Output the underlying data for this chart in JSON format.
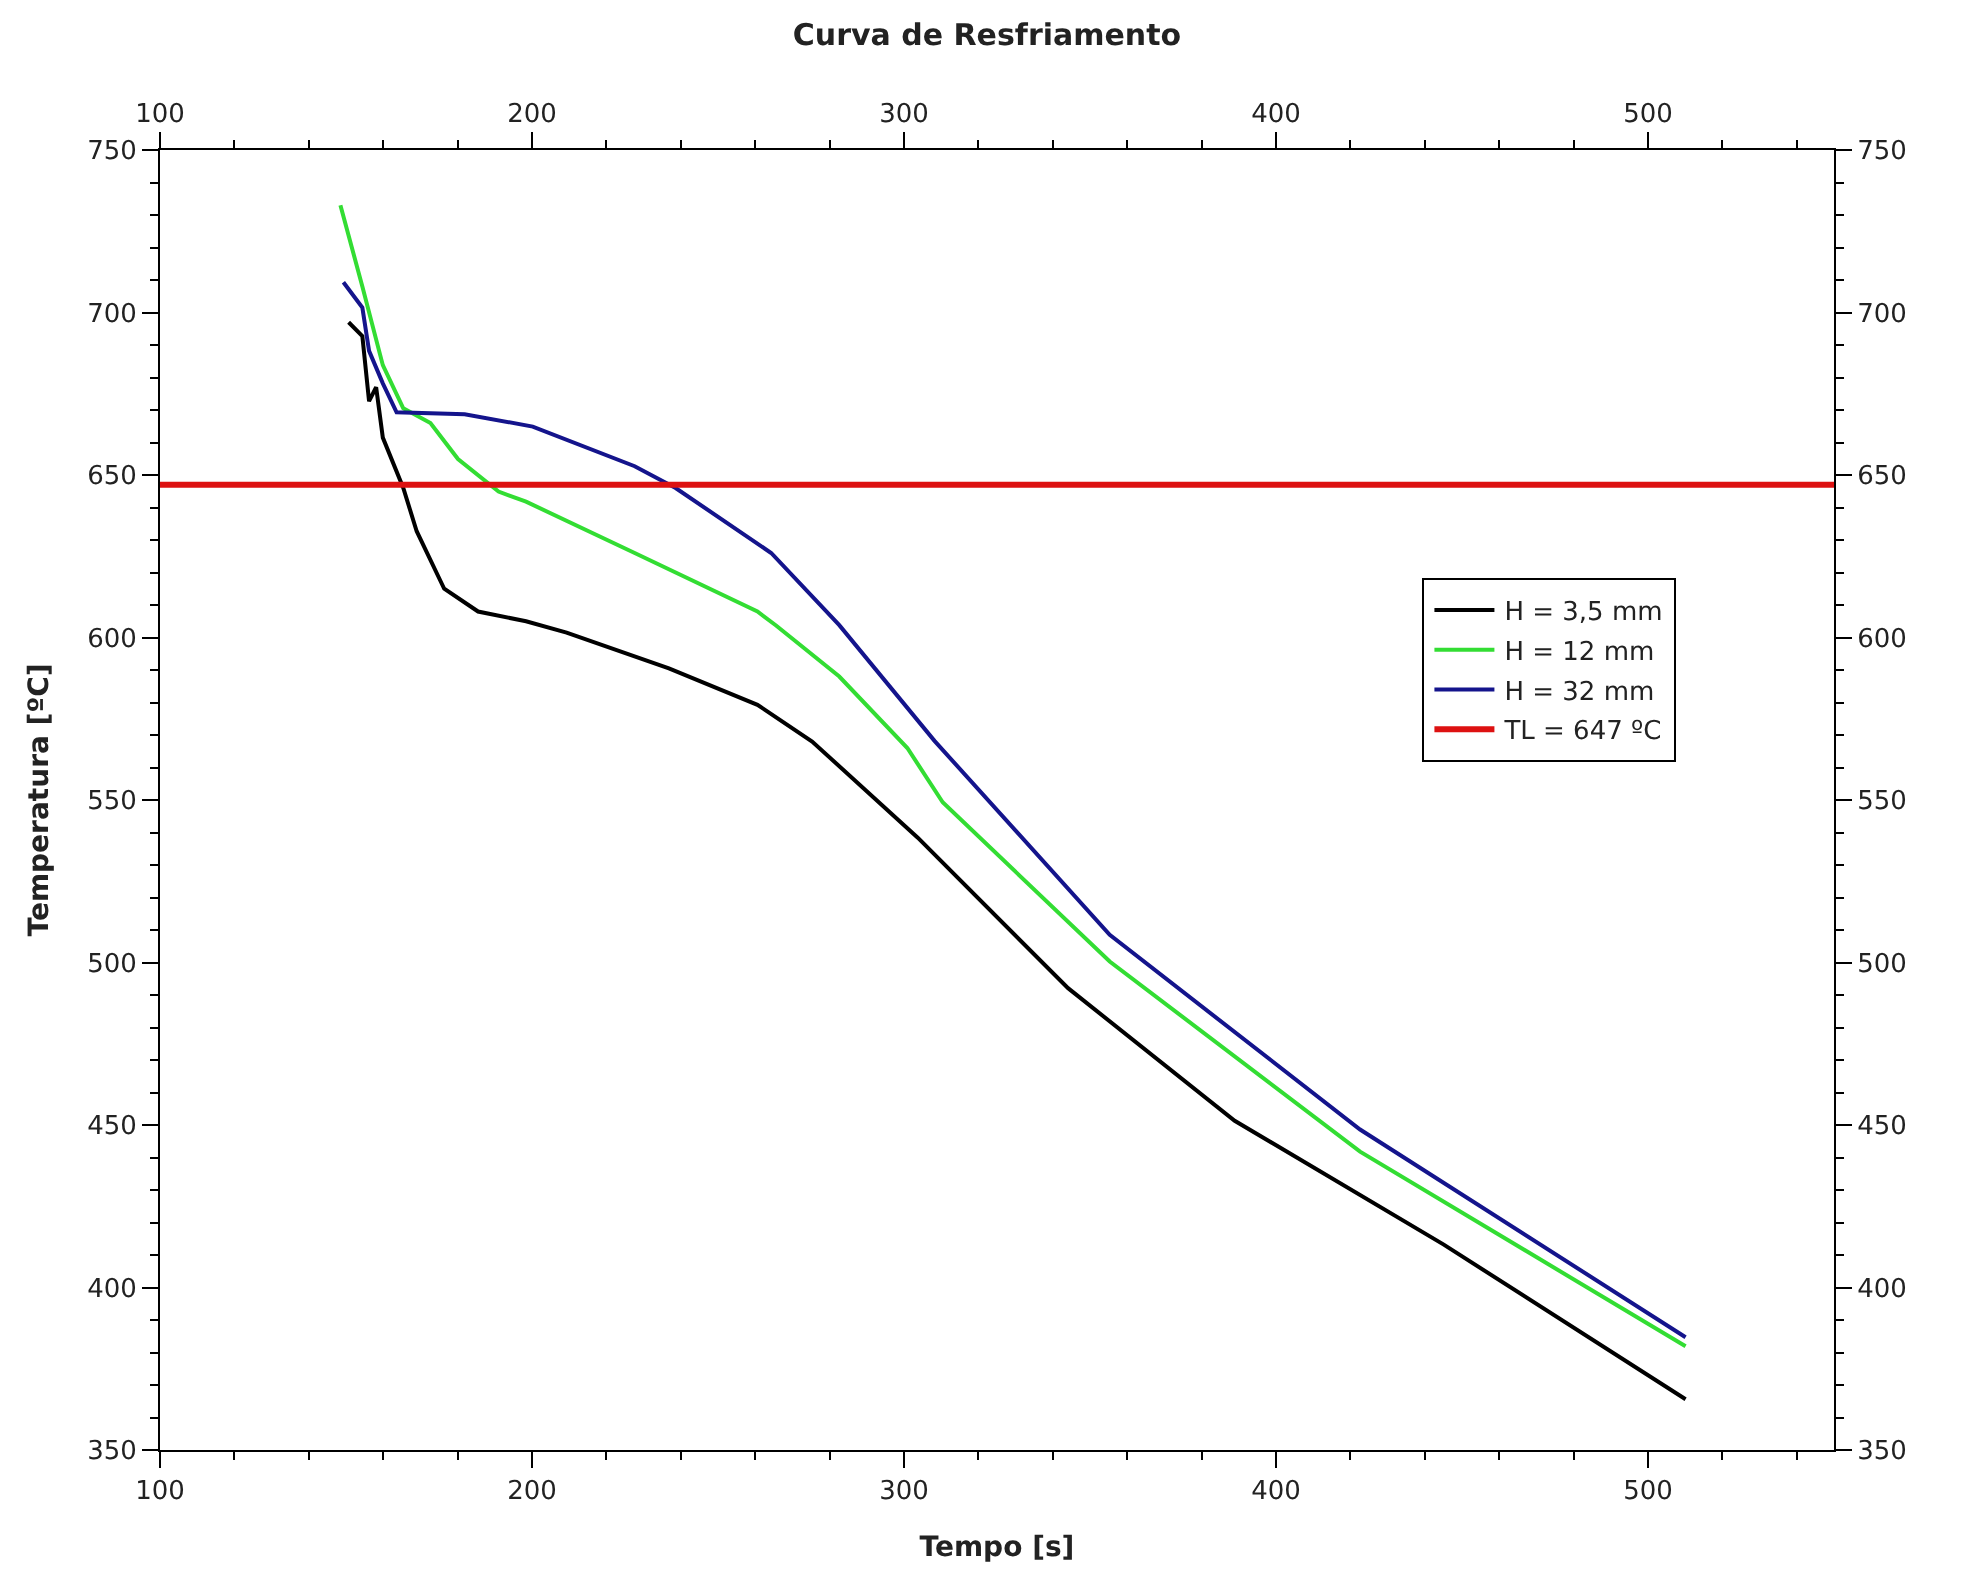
{
  "chart_data": {
    "type": "line",
    "title": "Curva de Resfriamento",
    "xlabel": "Tempo [s]",
    "ylabel": "Temperatura [ºC]",
    "xlim": [
      100,
      550
    ],
    "ylim": [
      350,
      750
    ],
    "x2lim": [
      100,
      550
    ],
    "y2lim": [
      350,
      750
    ],
    "xticks": [
      100,
      {
        "value": 120,
        "label": null
      },
      {
        "value": 140,
        "label": null
      },
      {
        "value": 160,
        "label": null
      },
      {
        "value": 180,
        "label": null
      },
      200,
      {
        "value": 220,
        "label": null
      },
      {
        "value": 240,
        "label": null
      },
      {
        "value": 260,
        "label": null
      },
      {
        "value": 280,
        "label": null
      },
      300,
      {
        "value": 320,
        "label": null
      },
      {
        "value": 340,
        "label": null
      },
      {
        "value": 360,
        "label": null
      },
      {
        "value": 380,
        "label": null
      },
      400,
      {
        "value": 420,
        "label": null
      },
      {
        "value": 440,
        "label": null
      },
      {
        "value": 460,
        "label": null
      },
      {
        "value": 480,
        "label": null
      },
      500,
      {
        "value": 520,
        "label": null
      },
      {
        "value": 540,
        "label": null
      }
    ],
    "x2ticks": [
      100,
      {
        "value": 120,
        "label": null
      },
      {
        "value": 140,
        "label": null
      },
      {
        "value": 160,
        "label": null
      },
      {
        "value": 180,
        "label": null
      },
      200,
      {
        "value": 220,
        "label": null
      },
      {
        "value": 240,
        "label": null
      },
      {
        "value": 260,
        "label": null
      },
      {
        "value": 280,
        "label": null
      },
      300,
      {
        "value": 320,
        "label": null
      },
      {
        "value": 340,
        "label": null
      },
      {
        "value": 360,
        "label": null
      },
      {
        "value": 380,
        "label": null
      },
      400,
      {
        "value": 420,
        "label": null
      },
      {
        "value": 440,
        "label": null
      },
      {
        "value": 460,
        "label": null
      },
      {
        "value": 480,
        "label": null
      },
      500,
      {
        "value": 520,
        "label": null
      },
      {
        "value": 540,
        "label": null
      }
    ],
    "yticks": [
      350,
      {
        "value": 360,
        "label": null
      },
      {
        "value": 370,
        "label": null
      },
      {
        "value": 380,
        "label": null
      },
      {
        "value": 390,
        "label": null
      },
      400,
      {
        "value": 410,
        "label": null
      },
      {
        "value": 420,
        "label": null
      },
      {
        "value": 430,
        "label": null
      },
      {
        "value": 440,
        "label": null
      },
      450,
      {
        "value": 460,
        "label": null
      },
      {
        "value": 470,
        "label": null
      },
      {
        "value": 480,
        "label": null
      },
      {
        "value": 490,
        "label": null
      },
      500,
      {
        "value": 510,
        "label": null
      },
      {
        "value": 520,
        "label": null
      },
      {
        "value": 530,
        "label": null
      },
      {
        "value": 540,
        "label": null
      },
      550,
      {
        "value": 560,
        "label": null
      },
      {
        "value": 570,
        "label": null
      },
      {
        "value": 580,
        "label": null
      },
      {
        "value": 590,
        "label": null
      },
      600,
      {
        "value": 610,
        "label": null
      },
      {
        "value": 620,
        "label": null
      },
      {
        "value": 630,
        "label": null
      },
      {
        "value": 640,
        "label": null
      },
      650,
      {
        "value": 660,
        "label": null
      },
      {
        "value": 670,
        "label": null
      },
      {
        "value": 680,
        "label": null
      },
      {
        "value": 690,
        "label": null
      },
      700,
      {
        "value": 710,
        "label": null
      },
      {
        "value": 720,
        "label": null
      },
      {
        "value": 730,
        "label": null
      },
      {
        "value": 740,
        "label": null
      },
      750
    ],
    "y2ticks": [
      350,
      {
        "value": 360,
        "label": null
      },
      {
        "value": 370,
        "label": null
      },
      {
        "value": 380,
        "label": null
      },
      {
        "value": 390,
        "label": null
      },
      400,
      {
        "value": 410,
        "label": null
      },
      {
        "value": 420,
        "label": null
      },
      {
        "value": 430,
        "label": null
      },
      {
        "value": 440,
        "label": null
      },
      450,
      {
        "value": 460,
        "label": null
      },
      {
        "value": 470,
        "label": null
      },
      {
        "value": 480,
        "label": null
      },
      {
        "value": 490,
        "label": null
      },
      500,
      {
        "value": 510,
        "label": null
      },
      {
        "value": 520,
        "label": null
      },
      {
        "value": 530,
        "label": null
      },
      {
        "value": 540,
        "label": null
      },
      550,
      {
        "value": 560,
        "label": null
      },
      {
        "value": 570,
        "label": null
      },
      {
        "value": 580,
        "label": null
      },
      {
        "value": 590,
        "label": null
      },
      600,
      {
        "value": 610,
        "label": null
      },
      {
        "value": 620,
        "label": null
      },
      {
        "value": 630,
        "label": null
      },
      {
        "value": 640,
        "label": null
      },
      650,
      {
        "value": 660,
        "label": null
      },
      {
        "value": 670,
        "label": null
      },
      {
        "value": 680,
        "label": null
      },
      {
        "value": 690,
        "label": null
      },
      700,
      {
        "value": 710,
        "label": null
      },
      {
        "value": 720,
        "label": null
      },
      {
        "value": 730,
        "label": null
      },
      {
        "value": 740,
        "label": null
      },
      750
    ],
    "legend": "right",
    "marker": "none",
    "line_style": "solid",
    "series": [
      {
        "name": "H = 3,5 mm",
        "color": "#000000",
        "x": [
          150.7,
          154.4,
          156.2,
          158.1,
          159.9,
          165.4,
          169.0,
          176.4,
          185.5,
          198.4,
          209.3,
          236.8,
          260.6,
          275.3,
          303.7,
          344.1,
          388.9,
          445.1,
          510.1
        ],
        "values": [
          697,
          692.7,
          672.7,
          677,
          661.5,
          646,
          632.7,
          615,
          608,
          605,
          601.5,
          590.5,
          579.3,
          568,
          538.4,
          492.1,
          451.3,
          413.2,
          365.6
        ]
      },
      {
        "name": "H = 12 mm",
        "color": "#33dd33",
        "x": [
          148.5,
          154.4,
          159.9,
          165.4,
          172.7,
          180.1,
          191.0,
          198.4,
          227.6,
          260.6,
          265.6,
          282.6,
          300.9,
          310.4,
          355.3,
          422.6,
          510.1
        ],
        "values": [
          733,
          708,
          683.8,
          670.5,
          666,
          654.9,
          644.9,
          641.8,
          626,
          608,
          603.7,
          588,
          566,
          549.3,
          500.3,
          441.8,
          381.9
        ]
      },
      {
        "name": "H = 32 mm",
        "color": "#14148c",
        "x": [
          149.3,
          154.4,
          156.2,
          159.9,
          163.6,
          181.9,
          200.2,
          227.6,
          238.6,
          264.3,
          282.6,
          308.2,
          355.3,
          422.6,
          510.1
        ],
        "values": [
          709.3,
          701.5,
          688.2,
          678.2,
          669.3,
          668.7,
          664.9,
          652.7,
          646,
          626,
          603.8,
          568.2,
          508.5,
          448.6,
          384.7
        ]
      }
    ],
    "ref_lines": [
      {
        "axis": "y",
        "value": 647,
        "label": "TL = 647 ºC",
        "color": "#dd1111",
        "line_style": "solid"
      }
    ]
  }
}
